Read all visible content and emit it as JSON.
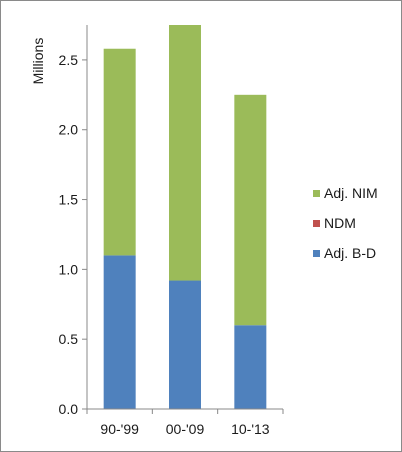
{
  "chart_data": {
    "type": "bar",
    "stacked": true,
    "ylabel": "Millions",
    "xlabel": "",
    "title": "",
    "ylim": [
      0,
      2.75
    ],
    "yticks": [
      0.0,
      0.5,
      1.0,
      1.5,
      2.0,
      2.5
    ],
    "ytick_labels": [
      "0.0",
      "0.5",
      "1.0",
      "1.5",
      "2.0",
      "2.5"
    ],
    "categories": [
      "90-'99",
      "00-'09",
      "10-'13"
    ],
    "series": [
      {
        "name": "Adj. B-D",
        "color": "#4f81bd",
        "values": [
          1.1,
          0.92,
          0.6
        ]
      },
      {
        "name": "NDM",
        "color": "#c0504d",
        "values": [
          0.0,
          0.0,
          0.0
        ]
      },
      {
        "name": "Adj. NIM",
        "color": "#9bbb59",
        "values": [
          1.48,
          1.83,
          1.65
        ]
      }
    ],
    "legend_order": [
      "Adj. NIM",
      "NDM",
      "Adj. B-D"
    ],
    "legend_position": "right",
    "grid": false
  }
}
